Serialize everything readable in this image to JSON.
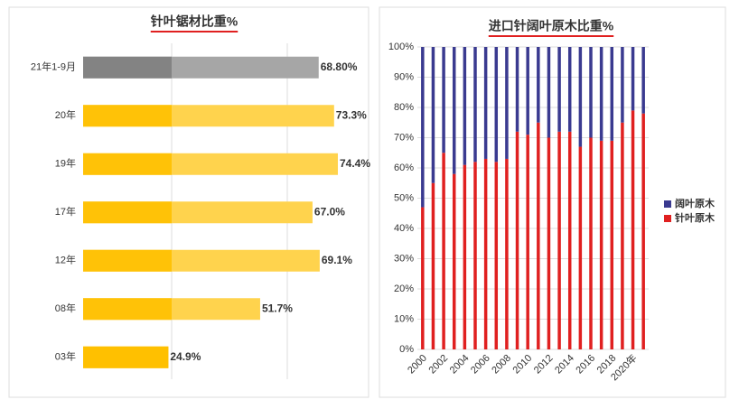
{
  "chart_data": [
    {
      "type": "barh",
      "title": "针叶锯材比重%",
      "categories": [
        "21年1-9月",
        "20年",
        "19年",
        "17年",
        "12年",
        "08年",
        "03年"
      ],
      "values": [
        68.8,
        73.3,
        74.4,
        67.0,
        69.1,
        51.7,
        24.9
      ],
      "value_labels": [
        "68.80%",
        "73.3%",
        "74.4%",
        "67.0%",
        "69.1%",
        "51.7%",
        "24.9%"
      ],
      "colors": [
        "#a6a6a6",
        "#ffd34d",
        "#ffd34d",
        "#ffd34d",
        "#ffd34d",
        "#ffd34d",
        "#ffc000"
      ]
    },
    {
      "type": "stacked_bar",
      "title": "进口针阔叶原木比重%",
      "categories": [
        "2000",
        null,
        "2002",
        null,
        "2004",
        null,
        "2006",
        null,
        "2008",
        null,
        "2010",
        null,
        "2012",
        null,
        "2014",
        null,
        "2016",
        null,
        "2018",
        null,
        "2020年",
        null
      ],
      "series": [
        {
          "name": "针叶原木",
          "color": "#e02020",
          "values": [
            47,
            55,
            65,
            58,
            61,
            62,
            63,
            62,
            63,
            72,
            71,
            75,
            70,
            72,
            72,
            67,
            70,
            69,
            69,
            75,
            79,
            78
          ]
        },
        {
          "name": "阔叶原木",
          "color": "#3a3a90",
          "values": [
            53,
            45,
            35,
            42,
            39,
            38,
            37,
            38,
            37,
            28,
            29,
            25,
            30,
            28,
            28,
            33,
            30,
            31,
            31,
            25,
            21,
            22
          ]
        }
      ],
      "ylim": [
        0,
        100
      ],
      "yticks": [
        {
          "value": 0,
          "label": "0%"
        },
        {
          "value": 10,
          "label": "10%"
        },
        {
          "value": 20,
          "label": "20%"
        },
        {
          "value": 30,
          "label": "30%"
        },
        {
          "value": 40,
          "label": "40%"
        },
        {
          "value": 50,
          "label": "50%"
        },
        {
          "value": 60,
          "label": "60%"
        },
        {
          "value": 70,
          "label": "70%"
        },
        {
          "value": 80,
          "label": "80%"
        },
        {
          "value": 90,
          "label": "90%"
        },
        {
          "value": 100,
          "label": "100%"
        }
      ],
      "grid": true,
      "legend": "right"
    }
  ]
}
